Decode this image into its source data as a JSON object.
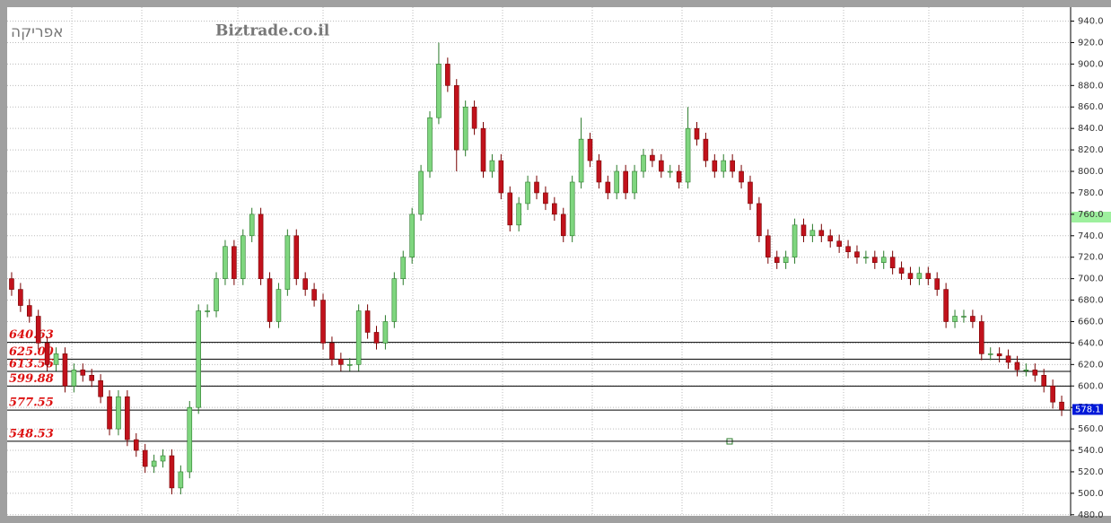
{
  "chart_data": {
    "type": "candlestick",
    "title": "אפריקה",
    "watermark": "Biztrade.co.il",
    "open": [
      700,
      690,
      675,
      665,
      640,
      620,
      630,
      600,
      615,
      610,
      605,
      590,
      560,
      590,
      550,
      540,
      525,
      530,
      535,
      505,
      520,
      580,
      670,
      670,
      700,
      730,
      700,
      740,
      760,
      700,
      660,
      690,
      740,
      700,
      690,
      680,
      640,
      625,
      620,
      620,
      670,
      650,
      640,
      660,
      700,
      720,
      760,
      800,
      850,
      900,
      880,
      820,
      860,
      840,
      800,
      810,
      780,
      750,
      770,
      790,
      780,
      770,
      760,
      740,
      790,
      830,
      810,
      790,
      780,
      800,
      780,
      800,
      815,
      810,
      800,
      800,
      790,
      840,
      830,
      810,
      800,
      810,
      800,
      790,
      770,
      740,
      720,
      715,
      720,
      750,
      740,
      745,
      740,
      735,
      730,
      725,
      720,
      720,
      715,
      720,
      710,
      705,
      700,
      705,
      700,
      690,
      660,
      665,
      665,
      660,
      630,
      630,
      628,
      622,
      615,
      615,
      610,
      600,
      585
    ],
    "high": [
      706,
      696,
      681,
      671,
      646,
      636,
      636,
      621,
      621,
      616,
      611,
      596,
      596,
      596,
      556,
      546,
      536,
      541,
      541,
      526,
      586,
      676,
      676,
      706,
      736,
      736,
      746,
      766,
      766,
      706,
      696,
      746,
      746,
      706,
      696,
      686,
      646,
      631,
      626,
      676,
      676,
      656,
      666,
      706,
      726,
      766,
      806,
      856,
      920,
      906,
      886,
      866,
      866,
      846,
      816,
      816,
      786,
      776,
      796,
      796,
      786,
      776,
      766,
      796,
      850,
      836,
      816,
      796,
      806,
      806,
      806,
      821,
      821,
      816,
      806,
      806,
      860,
      846,
      836,
      816,
      816,
      816,
      806,
      796,
      776,
      746,
      726,
      726,
      756,
      756,
      751,
      751,
      746,
      741,
      736,
      731,
      726,
      726,
      726,
      726,
      716,
      711,
      711,
      711,
      706,
      696,
      671,
      671,
      671,
      666,
      636,
      636,
      634,
      628,
      621,
      621,
      616,
      606,
      591
    ],
    "low": [
      684,
      669,
      659,
      634,
      614,
      614,
      594,
      594,
      604,
      599,
      584,
      554,
      554,
      544,
      534,
      519,
      519,
      524,
      499,
      499,
      514,
      574,
      664,
      664,
      694,
      694,
      694,
      734,
      694,
      654,
      654,
      684,
      694,
      684,
      674,
      634,
      619,
      614,
      614,
      614,
      644,
      634,
      634,
      654,
      694,
      714,
      754,
      794,
      844,
      874,
      800,
      814,
      834,
      794,
      794,
      774,
      744,
      744,
      764,
      774,
      764,
      754,
      734,
      734,
      784,
      804,
      784,
      774,
      774,
      774,
      774,
      794,
      804,
      794,
      794,
      784,
      784,
      824,
      804,
      794,
      794,
      794,
      784,
      764,
      734,
      714,
      709,
      709,
      714,
      734,
      734,
      734,
      729,
      724,
      719,
      714,
      714,
      709,
      709,
      704,
      699,
      694,
      694,
      694,
      684,
      654,
      654,
      659,
      654,
      624,
      624,
      622,
      616,
      609,
      609,
      604,
      594,
      579,
      572
    ],
    "close": [
      690,
      675,
      665,
      640,
      620,
      630,
      600,
      615,
      610,
      605,
      590,
      560,
      590,
      550,
      540,
      525,
      530,
      535,
      505,
      520,
      580,
      670,
      670,
      700,
      730,
      700,
      740,
      760,
      700,
      660,
      690,
      740,
      700,
      690,
      680,
      640,
      625,
      620,
      620,
      670,
      650,
      640,
      660,
      700,
      720,
      760,
      800,
      850,
      900,
      880,
      820,
      860,
      840,
      800,
      810,
      780,
      750,
      770,
      790,
      780,
      770,
      760,
      740,
      790,
      830,
      810,
      790,
      780,
      800,
      780,
      800,
      815,
      810,
      800,
      800,
      790,
      840,
      830,
      810,
      800,
      810,
      800,
      790,
      770,
      740,
      720,
      715,
      720,
      750,
      740,
      745,
      740,
      735,
      730,
      725,
      720,
      720,
      715,
      720,
      710,
      705,
      700,
      705,
      700,
      690,
      660,
      665,
      665,
      660,
      630,
      630,
      628,
      622,
      615,
      615,
      610,
      600,
      585,
      578
    ],
    "up_color": "#7fd67f",
    "down_color": "#c1121c",
    "ylim": [
      479,
      953
    ],
    "yticks": [
      {
        "value": 480,
        "label": "480.0"
      },
      {
        "value": 500,
        "label": "500.0"
      },
      {
        "value": 520,
        "label": "520.0"
      },
      {
        "value": 540,
        "label": "540.0"
      },
      {
        "value": 560,
        "label": "560.0"
      },
      {
        "value": 580,
        "label": "580.0"
      },
      {
        "value": 600,
        "label": "600.0"
      },
      {
        "value": 620,
        "label": "620.0"
      },
      {
        "value": 640,
        "label": "640.0"
      },
      {
        "value": 660,
        "label": "660.0"
      },
      {
        "value": 680,
        "label": "680.0"
      },
      {
        "value": 700,
        "label": "700.0"
      },
      {
        "value": 720,
        "label": "720.0"
      },
      {
        "value": 740,
        "label": "740.0"
      },
      {
        "value": 760,
        "label": "760.0"
      },
      {
        "value": 780,
        "label": "780.0"
      },
      {
        "value": 800,
        "label": "800.0"
      },
      {
        "value": 820,
        "label": "820.0"
      },
      {
        "value": 840,
        "label": "840.0"
      },
      {
        "value": 860,
        "label": "860.0"
      },
      {
        "value": 880,
        "label": "880.0"
      },
      {
        "value": 900,
        "label": "900.0"
      },
      {
        "value": 920,
        "label": "920.0"
      },
      {
        "value": 940,
        "label": "940.0"
      }
    ],
    "levels": [
      {
        "value": 640.63,
        "label": "640.63"
      },
      {
        "value": 625,
        "label": "625.00"
      },
      {
        "value": 613.56,
        "label": "613.56"
      },
      {
        "value": 599.88,
        "label": "599.88"
      },
      {
        "value": 577.55,
        "label": "577.55"
      },
      {
        "value": 548.53,
        "label": "548.53"
      }
    ],
    "last_price": 578.1,
    "grid": true
  }
}
